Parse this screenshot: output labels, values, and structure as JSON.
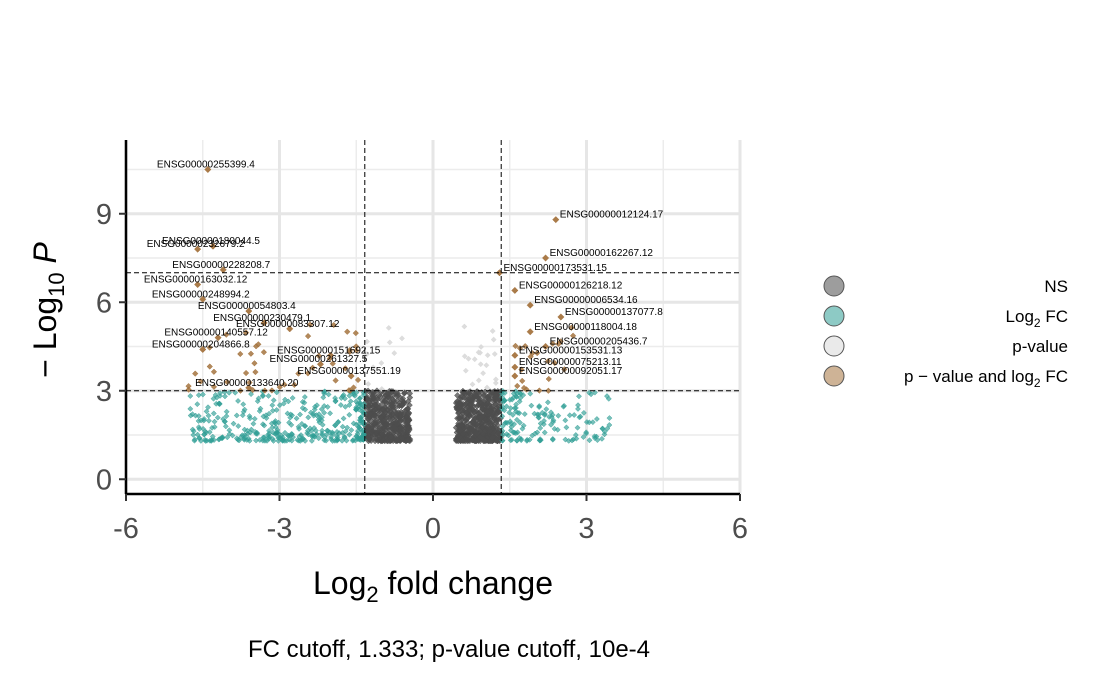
{
  "chart_data": {
    "type": "scatter",
    "subtype": "volcano",
    "xlabel_base": "Log",
    "xlabel_sub": "2",
    "xlabel_rest": " fold change",
    "ylabel_prefix": "− Log",
    "ylabel_sub": "10",
    "ylabel_var": "P",
    "xlim": [
      -6,
      6
    ],
    "ylim": [
      0,
      11
    ],
    "xticks": [
      -6,
      -3,
      0,
      3,
      6
    ],
    "xtick_labels": [
      "-6",
      "-3",
      "0",
      "3",
      "6"
    ],
    "yticks": [
      0,
      3,
      6,
      9
    ],
    "ytick_labels": [
      "0",
      "3",
      "6",
      "9"
    ],
    "grid": true,
    "fc_cutoff": 1.333,
    "p_cutoff": 7,
    "p_cutoff_line": 3,
    "legend_position": "right",
    "legend": [
      {
        "key": "NS",
        "label": "NS",
        "color": "#4d4d4d"
      },
      {
        "key": "fc",
        "label": "Log",
        "sub": "2",
        "rest": " FC",
        "color": "#2f9e95"
      },
      {
        "key": "p",
        "label": "p-value",
        "color": "#d9d9d9"
      },
      {
        "key": "both",
        "label": "p − value and log",
        "sub": "2",
        "rest": " FC",
        "color": "#a5743f"
      }
    ],
    "caption": "FC cutoff, 1.333; p-value cutoff, 10e-4",
    "labeled_points": [
      {
        "gene": "ENSG00000255399.4",
        "x": -4.4,
        "y": 10.5
      },
      {
        "gene": "ENSG00000012124.17",
        "x": 2.4,
        "y": 8.8
      },
      {
        "gene": "ENSG00000180044.5",
        "x": -4.3,
        "y": 7.9
      },
      {
        "gene": "ENSG00000232679.2",
        "x": -4.6,
        "y": 7.8
      },
      {
        "gene": "ENSG00000162267.12",
        "x": 2.2,
        "y": 7.5
      },
      {
        "gene": "ENSG00000228208.7",
        "x": -4.1,
        "y": 7.1
      },
      {
        "gene": "ENSG00000173531.15",
        "x": 1.3,
        "y": 7.0
      },
      {
        "gene": "ENSG00000163032.12",
        "x": -4.6,
        "y": 6.6
      },
      {
        "gene": "ENSG00000126218.12",
        "x": 1.6,
        "y": 6.4
      },
      {
        "gene": "ENSG00000248994.2",
        "x": -4.5,
        "y": 6.1
      },
      {
        "gene": "ENSG00000006534.16",
        "x": 1.9,
        "y": 5.9
      },
      {
        "gene": "ENSG00000054803.4",
        "x": -3.6,
        "y": 5.7
      },
      {
        "gene": "ENSG00000137077.8",
        "x": 2.5,
        "y": 5.5
      },
      {
        "gene": "ENSG00000230479.1",
        "x": -3.3,
        "y": 5.3
      },
      {
        "gene": "ENSG00000083307.12",
        "x": -2.8,
        "y": 5.1
      },
      {
        "gene": "ENSG00000118004.18",
        "x": 1.9,
        "y": 5.0
      },
      {
        "gene": "ENSG00000140557.12",
        "x": -4.2,
        "y": 4.8
      },
      {
        "gene": "ENSG00000205436.7",
        "x": 2.2,
        "y": 4.5
      },
      {
        "gene": "ENSG00000204866.8",
        "x": -4.5,
        "y": 4.4
      },
      {
        "gene": "ENSG00000151692.15",
        "x": -2.0,
        "y": 4.2
      },
      {
        "gene": "ENSG00000153531.13",
        "x": 1.6,
        "y": 4.2
      },
      {
        "gene": "ENSG00000261327.5",
        "x": -2.2,
        "y": 3.9
      },
      {
        "gene": "ENSG00000075213.11",
        "x": 1.6,
        "y": 3.8
      },
      {
        "gene": "ENSG00000137551.19",
        "x": -1.6,
        "y": 3.5
      },
      {
        "gene": "ENSG00000092051.17",
        "x": 1.6,
        "y": 3.5
      },
      {
        "gene": "ENSG00000133640.20",
        "x": -3.6,
        "y": 3.1
      }
    ]
  }
}
